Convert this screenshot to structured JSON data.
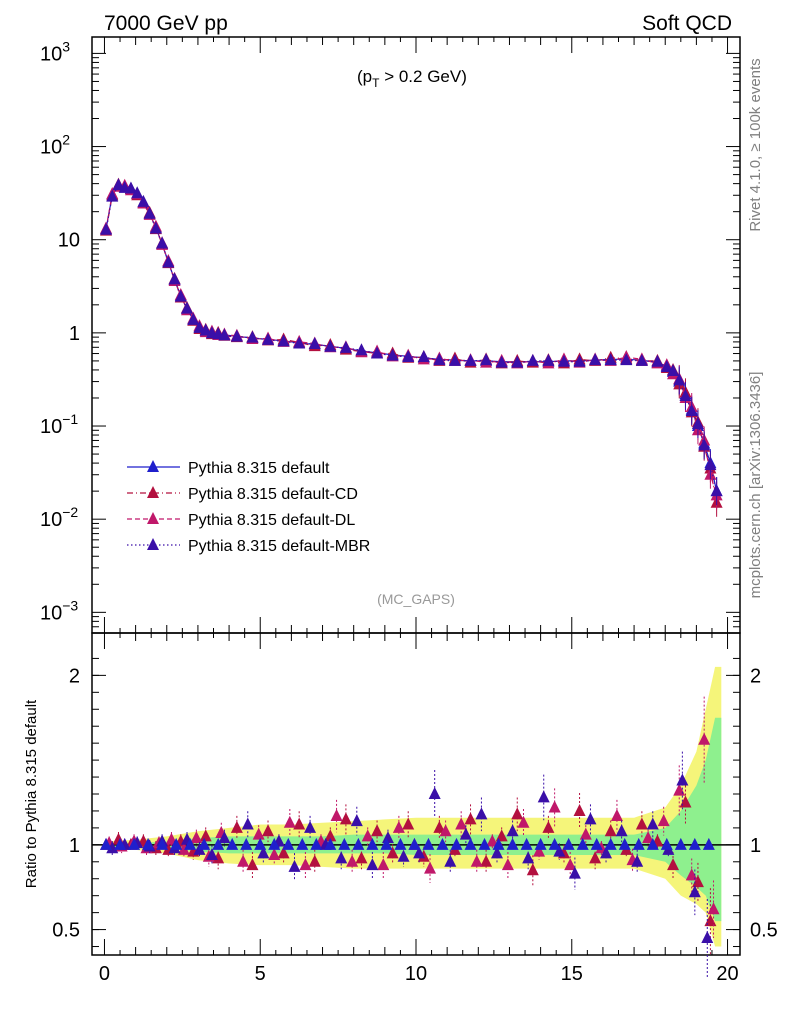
{
  "header": {
    "left": "7000 GeV pp",
    "right": "Soft QCD",
    "cut_label": "(p",
    "cut_sub": "T",
    "cut_rest": " > 0.2 GeV)",
    "watermark": "(MC_GAPS)",
    "side_top": "Rivet 4.1.0, ≥ 100k events",
    "side_bottom": "mcplots.cern.ch [arXiv:1306.3436]"
  },
  "colors": {
    "default": "#1f1fcc",
    "cd": "#b3103f",
    "dl": "#c0186a",
    "mbr": "#3a0fa8",
    "band_yellow": "#f5f57a",
    "band_green": "#8ef08e"
  },
  "chart_data": [
    {
      "type": "scatter",
      "title": "",
      "xlabel": "",
      "ylabel": "",
      "yscale": "log",
      "xlim": [
        -0.4,
        20.4
      ],
      "ylim": [
        0.0006,
        1500
      ],
      "y_ticks": [
        {
          "value": 1000,
          "label": "10",
          "exp": "3"
        },
        {
          "value": 100,
          "label": "10",
          "exp": "2"
        },
        {
          "value": 10,
          "label": "10",
          "exp": ""
        },
        {
          "value": 1,
          "label": "1",
          "exp": ""
        },
        {
          "value": 0.1,
          "label": "10",
          "exp": "−1"
        },
        {
          "value": 0.01,
          "label": "10",
          "exp": "−2"
        },
        {
          "value": 0.001,
          "label": "10",
          "exp": "−3"
        }
      ],
      "legend_position": "lower-left",
      "series": [
        {
          "name": "Pythia 8.315 default",
          "key": "default",
          "style": "solid",
          "x": [
            0.05,
            0.25,
            0.45,
            0.65,
            0.85,
            1.05,
            1.25,
            1.45,
            1.65,
            1.85,
            2.05,
            2.25,
            2.45,
            2.65,
            2.85,
            3.05,
            3.25,
            3.45,
            3.65,
            3.85,
            4.25,
            4.75,
            5.25,
            5.75,
            6.25,
            6.75,
            7.25,
            7.75,
            8.25,
            8.75,
            9.25,
            9.75,
            10.25,
            10.75,
            11.25,
            11.75,
            12.25,
            12.75,
            13.25,
            13.75,
            14.25,
            14.75,
            15.25,
            15.75,
            16.25,
            16.75,
            17.25,
            17.75,
            18.05,
            18.25,
            18.45,
            18.65,
            18.85,
            19.05,
            19.25,
            19.45,
            19.65
          ],
          "y": [
            13,
            30,
            38,
            37,
            35,
            31,
            25,
            19,
            13.5,
            9,
            5.8,
            3.7,
            2.5,
            1.8,
            1.4,
            1.15,
            1.05,
            1.0,
            0.98,
            0.95,
            0.92,
            0.88,
            0.85,
            0.82,
            0.78,
            0.75,
            0.72,
            0.68,
            0.64,
            0.61,
            0.58,
            0.56,
            0.54,
            0.52,
            0.51,
            0.5,
            0.5,
            0.49,
            0.49,
            0.49,
            0.49,
            0.5,
            0.5,
            0.51,
            0.52,
            0.52,
            0.51,
            0.48,
            0.44,
            0.38,
            0.3,
            0.22,
            0.15,
            0.1,
            0.065,
            0.04,
            0.02
          ]
        },
        {
          "name": "Pythia 8.315 default-CD",
          "key": "cd",
          "style": "dashdot",
          "x": [
            0.05,
            0.25,
            0.45,
            0.65,
            0.85,
            1.05,
            1.25,
            1.45,
            1.65,
            1.85,
            2.05,
            2.25,
            2.45,
            2.65,
            2.85,
            3.05,
            3.25,
            3.45,
            3.65,
            3.85,
            4.25,
            4.75,
            5.25,
            5.75,
            6.25,
            6.75,
            7.25,
            7.75,
            8.25,
            8.75,
            9.25,
            9.75,
            10.25,
            10.75,
            11.25,
            11.75,
            12.25,
            12.75,
            13.25,
            13.75,
            14.25,
            14.75,
            15.25,
            15.75,
            16.25,
            16.75,
            17.25,
            17.75,
            18.05,
            18.25,
            18.45,
            18.65,
            18.85,
            19.05,
            19.25,
            19.45,
            19.65
          ],
          "y": [
            12.5,
            30,
            39,
            37,
            35,
            30,
            25,
            19.5,
            13,
            9.2,
            5.6,
            3.8,
            2.4,
            1.85,
            1.35,
            1.1,
            1.08,
            0.97,
            1.0,
            0.93,
            0.9,
            0.9,
            0.83,
            0.85,
            0.79,
            0.72,
            0.74,
            0.66,
            0.63,
            0.6,
            0.6,
            0.54,
            0.55,
            0.5,
            0.53,
            0.48,
            0.52,
            0.47,
            0.5,
            0.48,
            0.51,
            0.47,
            0.52,
            0.5,
            0.54,
            0.53,
            0.5,
            0.5,
            0.42,
            0.4,
            0.28,
            0.23,
            0.14,
            0.11,
            0.06,
            0.035,
            0.015
          ]
        },
        {
          "name": "Pythia 8.315 default-DL",
          "key": "dl",
          "style": "dashed",
          "x": [
            0.05,
            0.25,
            0.45,
            0.65,
            0.85,
            1.05,
            1.25,
            1.45,
            1.65,
            1.85,
            2.05,
            2.25,
            2.45,
            2.65,
            2.85,
            3.05,
            3.25,
            3.45,
            3.65,
            3.85,
            4.25,
            4.75,
            5.25,
            5.75,
            6.25,
            6.75,
            7.25,
            7.75,
            8.25,
            8.75,
            9.25,
            9.75,
            10.25,
            10.75,
            11.25,
            11.75,
            12.25,
            12.75,
            13.25,
            13.75,
            14.25,
            14.75,
            15.25,
            15.75,
            16.25,
            16.75,
            17.25,
            17.75,
            18.05,
            18.25,
            18.45,
            18.65,
            18.85,
            19.05,
            19.25,
            19.45,
            19.65
          ],
          "y": [
            13.2,
            31,
            37,
            38,
            34,
            31,
            24.5,
            18.5,
            13.8,
            8.8,
            5.9,
            3.6,
            2.55,
            1.75,
            1.42,
            1.18,
            1.02,
            1.03,
            0.95,
            0.96,
            0.93,
            0.86,
            0.87,
            0.8,
            0.8,
            0.77,
            0.7,
            0.7,
            0.62,
            0.63,
            0.56,
            0.57,
            0.52,
            0.53,
            0.5,
            0.51,
            0.48,
            0.5,
            0.47,
            0.5,
            0.47,
            0.52,
            0.48,
            0.52,
            0.5,
            0.55,
            0.52,
            0.47,
            0.45,
            0.36,
            0.32,
            0.2,
            0.16,
            0.09,
            0.07,
            0.03,
            0.018
          ]
        },
        {
          "name": "Pythia 8.315 default-MBR",
          "key": "mbr",
          "style": "dotted",
          "x": [
            0.05,
            0.25,
            0.45,
            0.65,
            0.85,
            1.05,
            1.25,
            1.45,
            1.65,
            1.85,
            2.05,
            2.25,
            2.45,
            2.65,
            2.85,
            3.05,
            3.25,
            3.45,
            3.65,
            3.85,
            4.25,
            4.75,
            5.25,
            5.75,
            6.25,
            6.75,
            7.25,
            7.75,
            8.25,
            8.75,
            9.25,
            9.75,
            10.25,
            10.75,
            11.25,
            11.75,
            12.25,
            12.75,
            13.25,
            13.75,
            14.25,
            14.75,
            15.25,
            15.75,
            16.25,
            16.75,
            17.25,
            17.75,
            18.05,
            18.25,
            18.45,
            18.65,
            18.85,
            19.05,
            19.25,
            19.45,
            19.65
          ],
          "y": [
            12.8,
            29,
            38.5,
            36,
            35.5,
            31.5,
            25.5,
            19,
            13.2,
            9.1,
            5.7,
            3.75,
            2.45,
            1.82,
            1.38,
            1.13,
            1.06,
            0.99,
            0.97,
            0.94,
            0.91,
            0.89,
            0.84,
            0.81,
            0.77,
            0.76,
            0.71,
            0.69,
            0.65,
            0.6,
            0.57,
            0.55,
            0.55,
            0.51,
            0.5,
            0.5,
            0.51,
            0.48,
            0.48,
            0.5,
            0.5,
            0.49,
            0.49,
            0.51,
            0.51,
            0.51,
            0.5,
            0.49,
            0.43,
            0.39,
            0.31,
            0.21,
            0.145,
            0.105,
            0.062,
            0.038,
            0.02
          ]
        }
      ]
    },
    {
      "type": "scatter",
      "title": "",
      "xlabel": "",
      "ylabel": "Ratio to Pythia 8.315 default",
      "yscale": "linear",
      "xlim": [
        -0.4,
        20.4
      ],
      "ylim": [
        0.35,
        2.25
      ],
      "x_ticks": [
        0,
        5,
        10,
        15,
        20
      ],
      "y_ticks": [
        0.5,
        1,
        2
      ],
      "reference": 1,
      "band": {
        "x": [
          0,
          1,
          2,
          3,
          4,
          5,
          6,
          7,
          8,
          9,
          10,
          11,
          12,
          13,
          14,
          15,
          16,
          17,
          18,
          18.5,
          19,
          19.3,
          19.6,
          19.8
        ],
        "yellow_low": [
          0.98,
          0.97,
          0.95,
          0.91,
          0.89,
          0.88,
          0.88,
          0.87,
          0.86,
          0.86,
          0.86,
          0.86,
          0.86,
          0.86,
          0.86,
          0.86,
          0.86,
          0.86,
          0.8,
          0.7,
          0.65,
          0.6,
          0.4,
          0.4
        ],
        "yellow_high": [
          1.02,
          1.03,
          1.05,
          1.08,
          1.1,
          1.12,
          1.12,
          1.13,
          1.14,
          1.15,
          1.16,
          1.16,
          1.16,
          1.16,
          1.16,
          1.16,
          1.16,
          1.16,
          1.22,
          1.35,
          1.55,
          1.8,
          2.05,
          2.05
        ],
        "green_low": [
          0.99,
          0.99,
          0.98,
          0.96,
          0.95,
          0.95,
          0.95,
          0.95,
          0.95,
          0.95,
          0.94,
          0.94,
          0.94,
          0.94,
          0.94,
          0.94,
          0.94,
          0.94,
          0.9,
          0.82,
          0.75,
          0.7,
          0.55,
          0.55
        ],
        "green_high": [
          1.01,
          1.01,
          1.02,
          1.04,
          1.05,
          1.05,
          1.05,
          1.05,
          1.06,
          1.06,
          1.06,
          1.06,
          1.06,
          1.06,
          1.06,
          1.06,
          1.06,
          1.06,
          1.1,
          1.2,
          1.35,
          1.5,
          1.75,
          1.75
        ]
      },
      "series": [
        {
          "name": "Pythia 8.315 default-CD",
          "key": "cd",
          "x": [
            0.05,
            0.45,
            0.85,
            1.25,
            1.65,
            2.05,
            2.45,
            2.85,
            3.25,
            3.65,
            4.25,
            4.75,
            5.25,
            5.75,
            6.25,
            6.75,
            7.25,
            7.75,
            8.25,
            8.75,
            9.25,
            9.75,
            10.25,
            10.75,
            11.25,
            11.75,
            12.25,
            12.75,
            13.25,
            13.75,
            14.25,
            14.75,
            15.25,
            15.75,
            16.25,
            16.75,
            17.25,
            17.75,
            18.25,
            18.65,
            19.05,
            19.45
          ],
          "y": [
            1.0,
            1.03,
            1.0,
            1.02,
            0.98,
            0.97,
            1.02,
            0.96,
            1.05,
            0.92,
            1.1,
            0.88,
            1.08,
            0.95,
            1.12,
            0.9,
            1.05,
            1.15,
            0.92,
            1.08,
            0.95,
            1.12,
            0.93,
            1.1,
            0.97,
            1.15,
            0.9,
            1.05,
            1.18,
            0.85,
            1.1,
            0.95,
            1.2,
            0.92,
            1.08,
            0.97,
            1.12,
            1.02,
            0.88,
            1.25,
            0.78,
            0.55
          ]
        },
        {
          "name": "Pythia 8.315 default-DL",
          "key": "dl",
          "x": [
            0.15,
            0.55,
            0.95,
            1.35,
            1.75,
            2.15,
            2.55,
            2.95,
            3.35,
            3.75,
            4.45,
            4.95,
            5.45,
            5.95,
            6.45,
            6.95,
            7.45,
            7.95,
            8.45,
            8.95,
            9.45,
            9.95,
            10.45,
            10.95,
            11.45,
            11.95,
            12.45,
            12.95,
            13.45,
            13.95,
            14.45,
            14.95,
            15.45,
            15.95,
            16.45,
            16.95,
            17.45,
            17.95,
            18.45,
            18.85,
            19.25,
            19.55
          ],
          "y": [
            1.01,
            0.99,
            1.02,
            0.98,
            1.01,
            1.03,
            0.97,
            1.04,
            0.93,
            1.07,
            0.9,
            1.06,
            0.94,
            1.13,
            0.88,
            1.02,
            1.17,
            0.9,
            1.05,
            0.88,
            1.1,
            1.0,
            0.86,
            1.08,
            1.12,
            0.9,
            1.02,
            0.88,
            1.13,
            0.96,
            1.22,
            0.88,
            1.06,
            0.98,
            1.17,
            0.91,
            1.04,
            1.14,
            1.32,
            0.82,
            1.62,
            0.62
          ]
        },
        {
          "name": "Pythia 8.315 default-MBR",
          "key": "mbr",
          "x": [
            0.25,
            0.65,
            1.05,
            1.45,
            1.85,
            2.25,
            2.65,
            3.05,
            3.45,
            3.85,
            4.6,
            5.1,
            5.6,
            6.1,
            6.6,
            7.1,
            7.6,
            8.1,
            8.6,
            9.1,
            9.6,
            10.1,
            10.6,
            11.1,
            11.6,
            12.1,
            12.6,
            13.1,
            13.6,
            14.1,
            14.6,
            15.1,
            15.6,
            16.1,
            16.6,
            17.1,
            17.6,
            18.1,
            18.55,
            18.95,
            19.35
          ],
          "y": [
            0.98,
            1.0,
            1.01,
            0.99,
            1.02,
            0.98,
            1.03,
            0.97,
            0.94,
            1.04,
            1.12,
            0.95,
            1.02,
            0.87,
            1.1,
            1.0,
            0.92,
            1.14,
            0.88,
            1.04,
            0.93,
            0.95,
            1.3,
            0.9,
            1.06,
            1.18,
            0.95,
            1.08,
            0.92,
            1.28,
            0.96,
            0.83,
            1.15,
            0.95,
            1.08,
            0.9,
            1.12,
            0.97,
            1.38,
            0.72,
            0.45
          ]
        }
      ]
    }
  ]
}
